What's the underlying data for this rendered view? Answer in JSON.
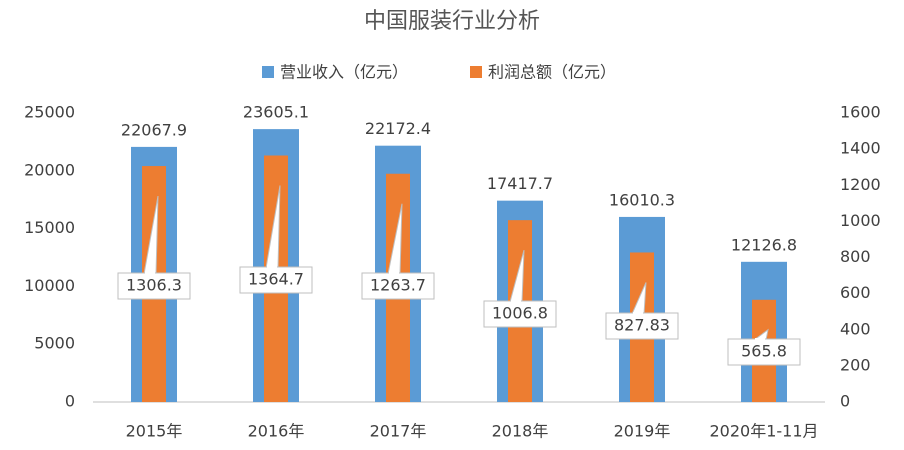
{
  "chart_data": {
    "type": "bar",
    "title": "中国服装行业分析",
    "categories": [
      "2015年",
      "2016年",
      "2017年",
      "2018年",
      "2019年",
      "2020年1-11月"
    ],
    "series": [
      {
        "name": "营业收入（亿元）",
        "color": "#5b9bd5",
        "values": [
          22067.9,
          23605.1,
          22172.4,
          17417.7,
          16010.3,
          12126.8
        ]
      },
      {
        "name": "利润总额（亿元）",
        "color": "#ed7d31",
        "axis": "y2",
        "values": [
          1306.3,
          1364.7,
          1263.7,
          1006.8,
          827.83,
          565.8
        ]
      }
    ],
    "ylim": [
      0,
      25000
    ],
    "yticks": [
      0,
      5000,
      10000,
      15000,
      20000,
      25000
    ],
    "y2lim": [
      0,
      1600
    ],
    "y2ticks": [
      0,
      200,
      400,
      600,
      800,
      1000,
      1200,
      1400,
      1600
    ],
    "grid": false,
    "legend": "top"
  }
}
